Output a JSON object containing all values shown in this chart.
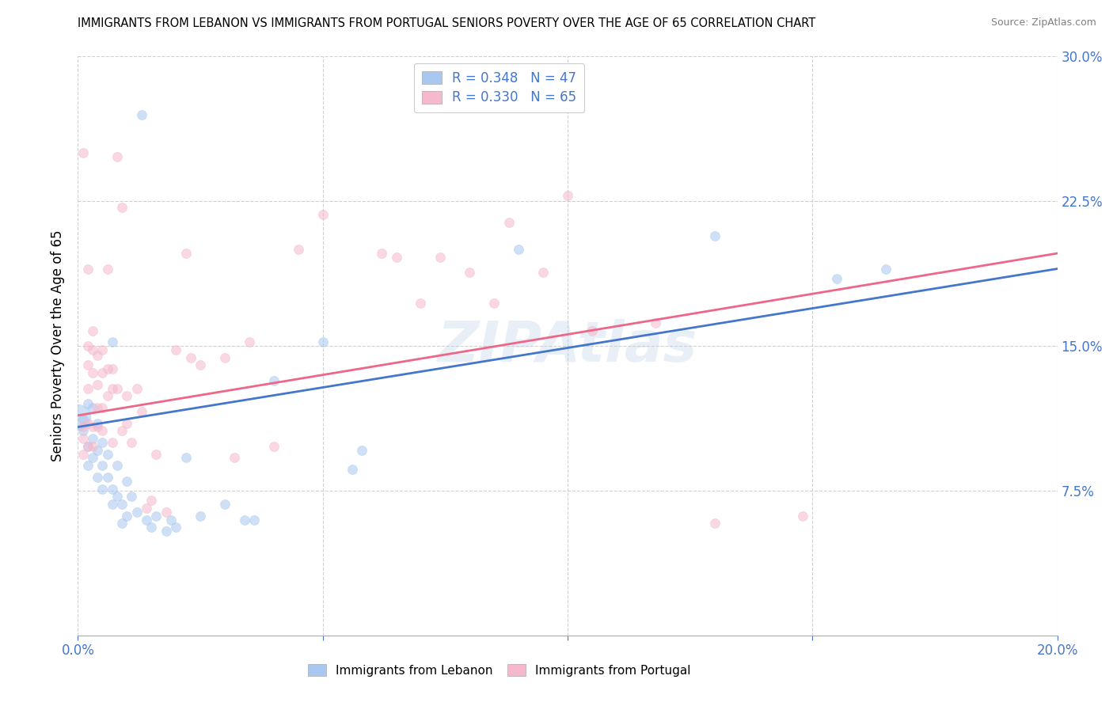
{
  "title": "IMMIGRANTS FROM LEBANON VS IMMIGRANTS FROM PORTUGAL SENIORS POVERTY OVER THE AGE OF 65 CORRELATION CHART",
  "source": "Source: ZipAtlas.com",
  "ylabel": "Seniors Poverty Over the Age of 65",
  "xlim": [
    0.0,
    0.2
  ],
  "ylim": [
    0.0,
    0.3
  ],
  "xticks": [
    0.0,
    0.05,
    0.1,
    0.15,
    0.2
  ],
  "xticklabels": [
    "0.0%",
    "",
    "",
    "",
    "20.0%"
  ],
  "yticks": [
    0.075,
    0.15,
    0.225,
    0.3
  ],
  "yticklabels": [
    "7.5%",
    "15.0%",
    "22.5%",
    "30.0%"
  ],
  "watermark": "ZIPAtlas",
  "lebanon_color": "#a8c8f0",
  "portugal_color": "#f5b8cc",
  "lebanon_line_color": "#4477cc",
  "portugal_line_color": "#ee6688",
  "lebanon_R": 0.348,
  "lebanon_N": 47,
  "portugal_R": 0.33,
  "portugal_N": 65,
  "lebanon_line_start_y": 0.108,
  "lebanon_line_end_y": 0.19,
  "portugal_line_start_y": 0.114,
  "portugal_line_end_y": 0.198,
  "lebanon_scatter": [
    [
      0.001,
      0.112
    ],
    [
      0.001,
      0.106
    ],
    [
      0.002,
      0.12
    ],
    [
      0.002,
      0.098
    ],
    [
      0.002,
      0.088
    ],
    [
      0.003,
      0.102
    ],
    [
      0.003,
      0.118
    ],
    [
      0.003,
      0.092
    ],
    [
      0.004,
      0.11
    ],
    [
      0.004,
      0.096
    ],
    [
      0.004,
      0.082
    ],
    [
      0.005,
      0.1
    ],
    [
      0.005,
      0.088
    ],
    [
      0.005,
      0.076
    ],
    [
      0.006,
      0.094
    ],
    [
      0.006,
      0.082
    ],
    [
      0.007,
      0.152
    ],
    [
      0.007,
      0.076
    ],
    [
      0.007,
      0.068
    ],
    [
      0.008,
      0.088
    ],
    [
      0.008,
      0.072
    ],
    [
      0.009,
      0.068
    ],
    [
      0.009,
      0.058
    ],
    [
      0.01,
      0.08
    ],
    [
      0.01,
      0.062
    ],
    [
      0.011,
      0.072
    ],
    [
      0.012,
      0.064
    ],
    [
      0.013,
      0.27
    ],
    [
      0.014,
      0.06
    ],
    [
      0.015,
      0.056
    ],
    [
      0.016,
      0.062
    ],
    [
      0.018,
      0.054
    ],
    [
      0.019,
      0.06
    ],
    [
      0.02,
      0.056
    ],
    [
      0.022,
      0.092
    ],
    [
      0.025,
      0.062
    ],
    [
      0.03,
      0.068
    ],
    [
      0.034,
      0.06
    ],
    [
      0.036,
      0.06
    ],
    [
      0.04,
      0.132
    ],
    [
      0.05,
      0.152
    ],
    [
      0.056,
      0.086
    ],
    [
      0.058,
      0.096
    ],
    [
      0.09,
      0.2
    ],
    [
      0.13,
      0.207
    ],
    [
      0.155,
      0.185
    ],
    [
      0.165,
      0.19
    ]
  ],
  "portugal_scatter": [
    [
      0.001,
      0.25
    ],
    [
      0.001,
      0.108
    ],
    [
      0.001,
      0.102
    ],
    [
      0.001,
      0.094
    ],
    [
      0.002,
      0.19
    ],
    [
      0.002,
      0.15
    ],
    [
      0.002,
      0.14
    ],
    [
      0.002,
      0.128
    ],
    [
      0.002,
      0.11
    ],
    [
      0.002,
      0.098
    ],
    [
      0.003,
      0.158
    ],
    [
      0.003,
      0.148
    ],
    [
      0.003,
      0.136
    ],
    [
      0.003,
      0.108
    ],
    [
      0.003,
      0.098
    ],
    [
      0.004,
      0.145
    ],
    [
      0.004,
      0.13
    ],
    [
      0.004,
      0.118
    ],
    [
      0.004,
      0.108
    ],
    [
      0.005,
      0.148
    ],
    [
      0.005,
      0.136
    ],
    [
      0.005,
      0.118
    ],
    [
      0.005,
      0.106
    ],
    [
      0.006,
      0.19
    ],
    [
      0.006,
      0.138
    ],
    [
      0.006,
      0.124
    ],
    [
      0.007,
      0.138
    ],
    [
      0.007,
      0.128
    ],
    [
      0.007,
      0.1
    ],
    [
      0.008,
      0.248
    ],
    [
      0.008,
      0.128
    ],
    [
      0.009,
      0.222
    ],
    [
      0.009,
      0.106
    ],
    [
      0.01,
      0.124
    ],
    [
      0.01,
      0.11
    ],
    [
      0.011,
      0.1
    ],
    [
      0.012,
      0.128
    ],
    [
      0.013,
      0.116
    ],
    [
      0.014,
      0.066
    ],
    [
      0.015,
      0.07
    ],
    [
      0.016,
      0.094
    ],
    [
      0.018,
      0.064
    ],
    [
      0.02,
      0.148
    ],
    [
      0.022,
      0.198
    ],
    [
      0.023,
      0.144
    ],
    [
      0.025,
      0.14
    ],
    [
      0.03,
      0.144
    ],
    [
      0.032,
      0.092
    ],
    [
      0.035,
      0.152
    ],
    [
      0.04,
      0.098
    ],
    [
      0.045,
      0.2
    ],
    [
      0.05,
      0.218
    ],
    [
      0.062,
      0.198
    ],
    [
      0.065,
      0.196
    ],
    [
      0.07,
      0.172
    ],
    [
      0.074,
      0.196
    ],
    [
      0.08,
      0.188
    ],
    [
      0.085,
      0.172
    ],
    [
      0.088,
      0.214
    ],
    [
      0.095,
      0.188
    ],
    [
      0.1,
      0.228
    ],
    [
      0.105,
      0.158
    ],
    [
      0.118,
      0.162
    ],
    [
      0.13,
      0.058
    ],
    [
      0.148,
      0.062
    ]
  ],
  "dot_size": 75,
  "dot_alpha": 0.55
}
